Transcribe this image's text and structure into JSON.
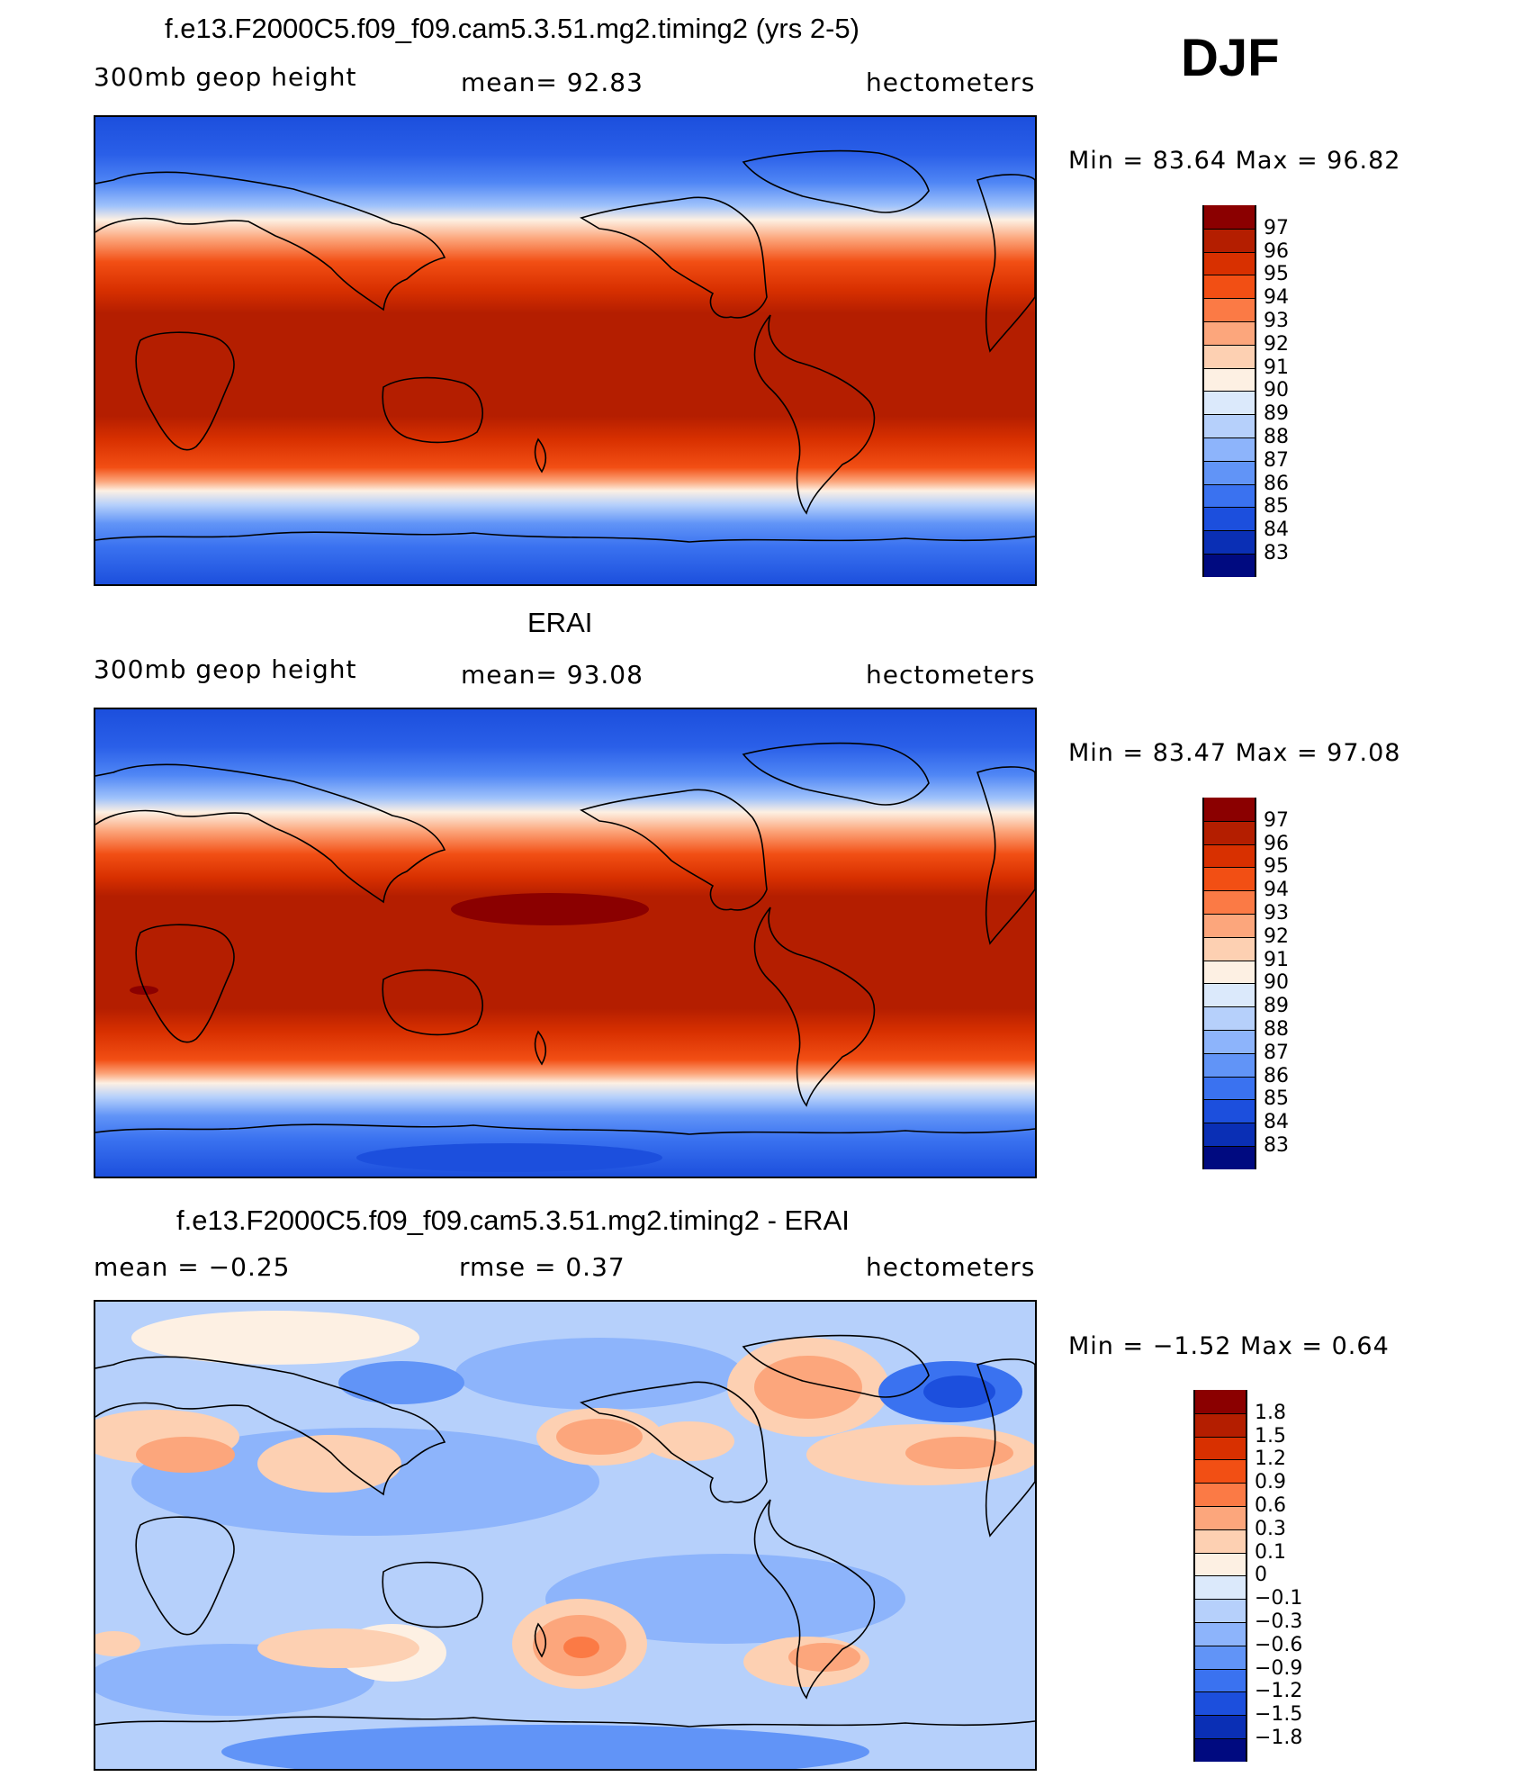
{
  "season": "DJF",
  "panels": [
    {
      "title": "f.e13.F2000C5.f09_f09.cam5.3.51.mg2.timing2 (yrs 2-5)",
      "left_label": "300mb  geop  height",
      "center_label": "mean=   92.83",
      "units": "hectometers",
      "min_max": "Min  =    83.64  Max  =    96.82",
      "legend": [
        "97",
        "96",
        "95",
        "94",
        "93",
        "92",
        "91",
        "90",
        "89",
        "88",
        "87",
        "86",
        "85",
        "84",
        "83"
      ],
      "legend_colors": [
        "#8b0000",
        "#b41e00",
        "#d83000",
        "#f24f14",
        "#fb7a45",
        "#fca67c",
        "#fdd0b2",
        "#fdf0e3",
        "#dbe9fb",
        "#b6d0fb",
        "#8db4fb",
        "#6194f7",
        "#3a72f0",
        "#1c4fdd",
        "#0a2fb5",
        "#000a80"
      ],
      "field": [
        {
          "label": "83",
          "color": "#0a2fb5"
        },
        {
          "label": "84",
          "color": "#1c4fdd"
        },
        {
          "label": "85",
          "color": "#3a72f0"
        },
        {
          "label": "86",
          "color": "#6194f7"
        },
        {
          "label": "87",
          "color": "#8db4fb"
        },
        {
          "label": "88",
          "color": "#b6d0fb"
        },
        {
          "label": "89",
          "color": "#dbe9fb"
        },
        {
          "label": "90",
          "color": "#fdf0e3"
        },
        {
          "label": "91",
          "color": "#fdd0b2"
        },
        {
          "label": "92",
          "color": "#fca67c"
        },
        {
          "label": "93",
          "color": "#fb7a45"
        },
        {
          "label": "94",
          "color": "#f24f14"
        },
        {
          "label": "95",
          "color": "#d83000"
        },
        {
          "label": "96",
          "color": "#b41e00"
        }
      ]
    },
    {
      "title": "ERAI",
      "left_label": "300mb  geop  height",
      "center_label": "mean=   93.08",
      "units": "hectometers",
      "min_max": "Min  =    83.47  Max  =    97.08",
      "legend": [
        "97",
        "96",
        "95",
        "94",
        "93",
        "92",
        "91",
        "90",
        "89",
        "88",
        "87",
        "86",
        "85",
        "84",
        "83"
      ],
      "legend_colors": [
        "#8b0000",
        "#b41e00",
        "#d83000",
        "#f24f14",
        "#fb7a45",
        "#fca67c",
        "#fdd0b2",
        "#fdf0e3",
        "#dbe9fb",
        "#b6d0fb",
        "#8db4fb",
        "#6194f7",
        "#3a72f0",
        "#1c4fdd",
        "#0a2fb5",
        "#000a80"
      ]
    },
    {
      "title": "f.e13.F2000C5.f09_f09.cam5.3.51.mg2.timing2 - ERAI",
      "left_label": "mean  =    −0.25",
      "center_label": "rmse  =     0.37",
      "units": "hectometers",
      "min_max": "Min  =    −1.52  Max  =     0.64",
      "legend": [
        "1.8",
        "1.5",
        "1.2",
        "0.9",
        "0.6",
        "0.3",
        "0.1",
        "0",
        "−0.1",
        "−0.3",
        "−0.6",
        "−0.9",
        "−1.2",
        "−1.5",
        "−1.8"
      ],
      "legend_colors": [
        "#8b0000",
        "#b41e00",
        "#d83000",
        "#f24f14",
        "#fb7a45",
        "#fca67c",
        "#fdd0b2",
        "#fdf0e3",
        "#dbe9fb",
        "#b6d0fb",
        "#8db4fb",
        "#6194f7",
        "#3a72f0",
        "#1c4fdd",
        "#0a2fb5",
        "#000a80"
      ]
    }
  ]
}
